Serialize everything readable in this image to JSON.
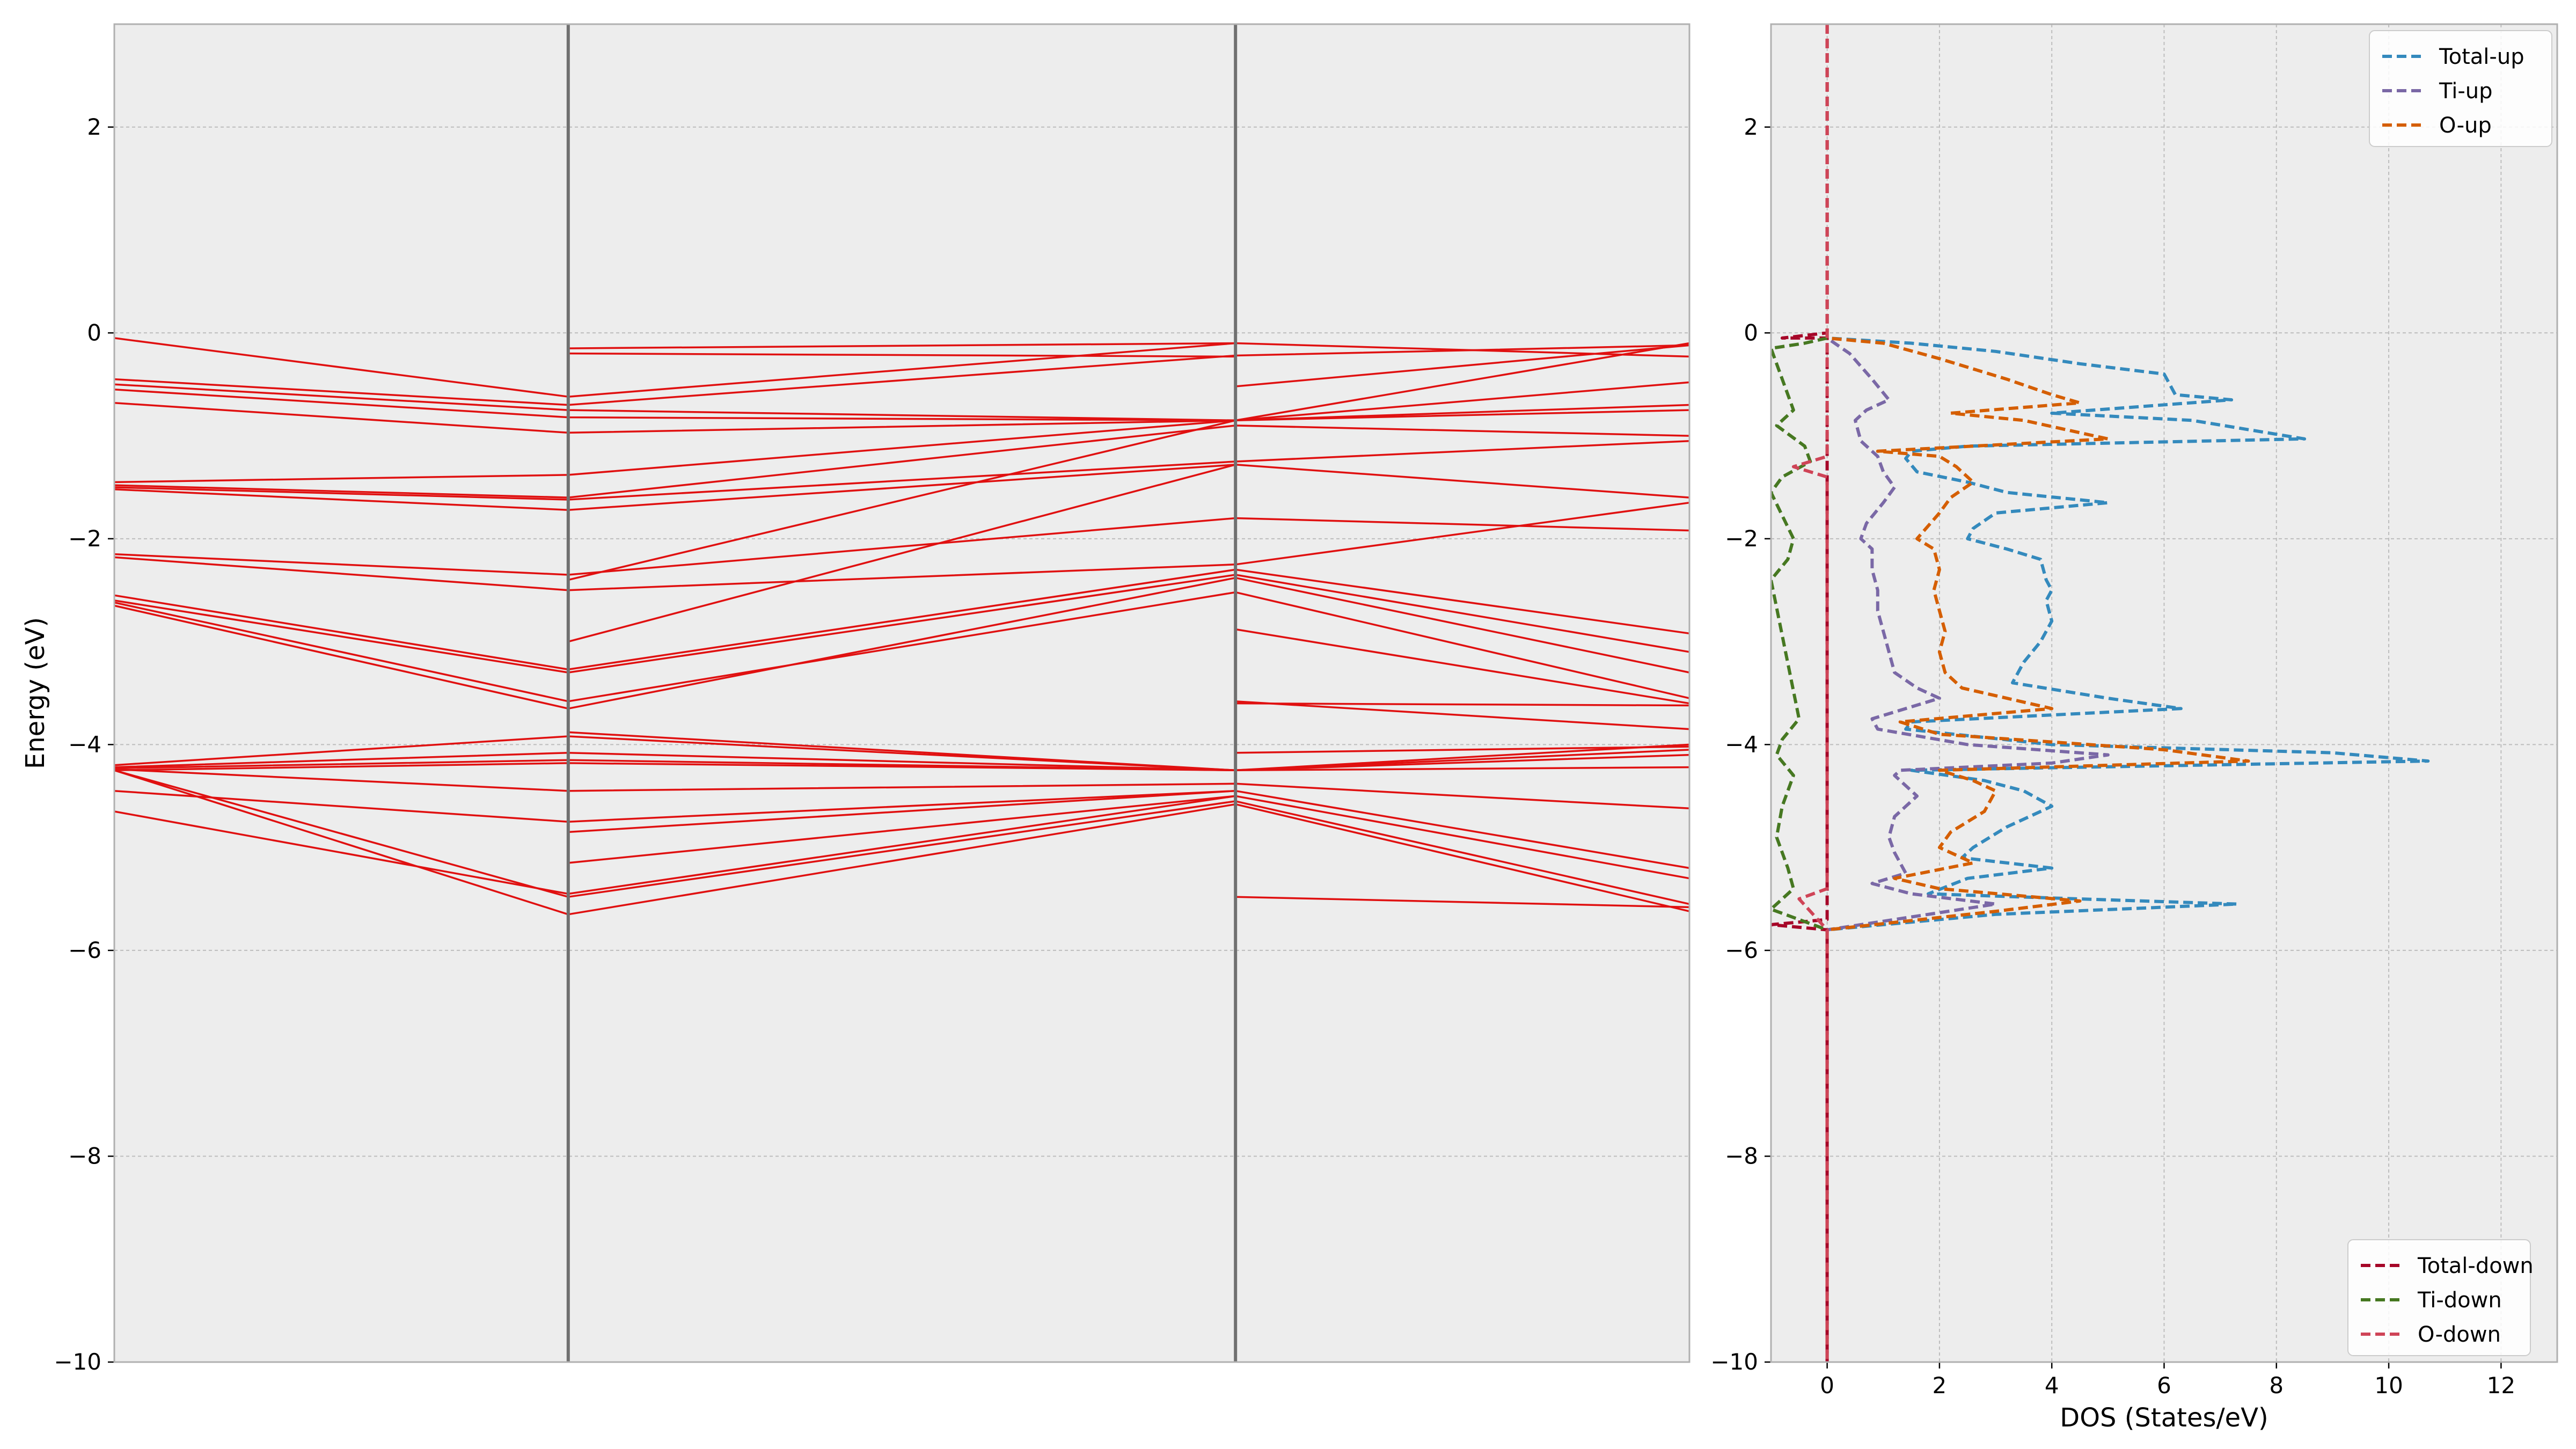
{
  "colors": {
    "axes_bg": "#EDEDED",
    "grid": "#BDBDBD",
    "spine": "#B0B0B0",
    "band": "#E01010",
    "kpath_line": "#707070"
  },
  "chart_data": [
    {
      "type": "line",
      "name": "band-structure",
      "ylabel": "Energy (eV)",
      "ylim": [
        -10,
        3
      ],
      "yticks": [
        -10,
        -8,
        -6,
        -4,
        -2,
        0,
        2
      ],
      "ytick_labels": [
        "−10",
        "−8",
        "−6",
        "−4",
        "−2",
        "0",
        "2"
      ],
      "grid": true,
      "x_segments": 3,
      "kpath_vlines": [
        1,
        2
      ],
      "segment_relative_widths": [
        1,
        1.47,
        1
      ],
      "bands": [
        [
          -0.05,
          -0.62,
          -0.1,
          -0.23
        ],
        [
          -0.45,
          -0.7,
          -0.22,
          -0.12
        ],
        [
          -0.5,
          -0.75,
          -0.85,
          -0.1
        ],
        [
          -0.55,
          -0.82,
          -0.85,
          -0.48
        ],
        [
          -0.68,
          -0.97,
          -0.85,
          -0.7
        ],
        [
          -1.45,
          -1.38,
          -0.85,
          -0.75
        ],
        [
          -1.48,
          -1.6,
          -0.9,
          -1.0
        ],
        [
          -1.5,
          -1.62,
          -1.25,
          -1.05
        ],
        [
          -1.52,
          -1.72,
          -1.28,
          -1.6
        ],
        [
          -2.15,
          -2.35,
          -1.8,
          -1.92
        ],
        [
          -2.18,
          -2.5,
          -2.25,
          -1.65
        ],
        [
          -2.55,
          -3.27,
          -2.3,
          -2.92
        ],
        [
          -2.6,
          -3.3,
          -2.35,
          -3.1
        ],
        [
          -2.62,
          -3.58,
          -2.52,
          -3.55
        ],
        [
          -2.65,
          -3.65,
          -2.38,
          -3.3
        ],
        [
          -4.2,
          -3.92,
          -4.25,
          -4.05
        ],
        [
          -4.22,
          -4.08,
          -4.25,
          -4.1
        ],
        [
          -4.23,
          -4.15,
          -4.25,
          -4.22
        ],
        [
          -4.25,
          -4.18,
          -4.25,
          -4.0
        ],
        [
          -4.24,
          -4.45,
          -4.38,
          -4.62
        ],
        [
          -4.45,
          -4.75,
          -4.45,
          -5.2
        ],
        [
          -4.65,
          -5.45,
          -4.5,
          -5.3
        ],
        [
          -4.25,
          -5.48,
          -4.55,
          -5.55
        ],
        [
          -4.25,
          -5.65,
          -4.58,
          -5.62
        ]
      ],
      "extra_segment_lines": [
        {
          "segment": 1,
          "from": -3.88,
          "to": -4.25
        },
        {
          "segment": 1,
          "from": -4.85,
          "to": -4.45
        },
        {
          "segment": 1,
          "from": -5.15,
          "to": -4.5
        },
        {
          "segment": 1,
          "from": -3.0,
          "to": -1.28
        },
        {
          "segment": 1,
          "from": -2.4,
          "to": -0.85
        },
        {
          "segment": 1,
          "from": -0.15,
          "to": -0.1
        },
        {
          "segment": 1,
          "from": -0.2,
          "to": -0.23
        },
        {
          "segment": 2,
          "from": -0.52,
          "to": -0.12
        },
        {
          "segment": 2,
          "from": -3.6,
          "to": -3.62
        },
        {
          "segment": 2,
          "from": -3.58,
          "to": -3.85
        },
        {
          "segment": 2,
          "from": -4.08,
          "to": -4.02
        },
        {
          "segment": 2,
          "from": -5.48,
          "to": -5.58
        },
        {
          "segment": 2,
          "from": -2.88,
          "to": -3.6
        }
      ]
    },
    {
      "type": "line",
      "name": "dos",
      "xlabel": "DOS (States/eV)",
      "xlim": [
        -1,
        13
      ],
      "ylim": [
        -10,
        3
      ],
      "xticks": [
        0,
        2,
        4,
        6,
        8,
        10,
        12
      ],
      "xtick_labels": [
        "0",
        "2",
        "4",
        "6",
        "8",
        "10",
        "12"
      ],
      "yticks": [
        -10,
        -8,
        -6,
        -4,
        -2,
        0,
        2
      ],
      "ytick_labels": [
        "−10",
        "−8",
        "−6",
        "−4",
        "−2",
        "0",
        "2"
      ],
      "grid": true,
      "legend_upper": {
        "placement": "top-right",
        "entries": [
          "Total-up",
          "Ti-up",
          "O-up"
        ]
      },
      "legend_lower": {
        "placement": "bottom-right",
        "entries": [
          "Total-down",
          "Ti-down",
          "O-down"
        ]
      },
      "series": [
        {
          "name": "Total-up",
          "color": "#348ABD",
          "points": [
            [
              0,
              3
            ],
            [
              0,
              0.0
            ],
            [
              0,
              -0.05
            ],
            [
              1.5,
              -0.1
            ],
            [
              3.0,
              -0.18
            ],
            [
              4.5,
              -0.3
            ],
            [
              6.0,
              -0.4
            ],
            [
              6.2,
              -0.6
            ],
            [
              7.2,
              -0.65
            ],
            [
              4.0,
              -0.78
            ],
            [
              6.5,
              -0.85
            ],
            [
              8.5,
              -1.03
            ],
            [
              2.5,
              -1.1
            ],
            [
              1.5,
              -1.15
            ],
            [
              1.4,
              -1.22
            ],
            [
              1.6,
              -1.35
            ],
            [
              2.5,
              -1.45
            ],
            [
              3.2,
              -1.55
            ],
            [
              5.0,
              -1.65
            ],
            [
              3.0,
              -1.75
            ],
            [
              2.6,
              -1.9
            ],
            [
              2.5,
              -2.0
            ],
            [
              3.2,
              -2.1
            ],
            [
              3.8,
              -2.2
            ],
            [
              3.9,
              -2.4
            ],
            [
              4.0,
              -2.5
            ],
            [
              3.9,
              -2.6
            ],
            [
              4.0,
              -2.8
            ],
            [
              3.8,
              -3.0
            ],
            [
              3.5,
              -3.2
            ],
            [
              3.3,
              -3.4
            ],
            [
              5.0,
              -3.55
            ],
            [
              6.3,
              -3.65
            ],
            [
              1.5,
              -3.78
            ],
            [
              1.4,
              -3.85
            ],
            [
              4.0,
              -4.0
            ],
            [
              9.0,
              -4.08
            ],
            [
              10.7,
              -4.16
            ],
            [
              1.5,
              -4.25
            ],
            [
              2.8,
              -4.35
            ],
            [
              3.5,
              -4.45
            ],
            [
              4.0,
              -4.6
            ],
            [
              3.2,
              -4.8
            ],
            [
              2.6,
              -5.0
            ],
            [
              2.4,
              -5.1
            ],
            [
              4.0,
              -5.2
            ],
            [
              2.5,
              -5.3
            ],
            [
              1.8,
              -5.45
            ],
            [
              4.5,
              -5.5
            ],
            [
              7.3,
              -5.55
            ],
            [
              3.0,
              -5.65
            ],
            [
              0,
              -5.8
            ],
            [
              0,
              -10
            ]
          ]
        },
        {
          "name": "Ti-up",
          "color": "#7A68A6",
          "points": [
            [
              0,
              3
            ],
            [
              0,
              0.0
            ],
            [
              0,
              -0.05
            ],
            [
              0.4,
              -0.2
            ],
            [
              0.8,
              -0.45
            ],
            [
              1.1,
              -0.65
            ],
            [
              0.7,
              -0.75
            ],
            [
              0.5,
              -0.85
            ],
            [
              0.6,
              -1.05
            ],
            [
              0.9,
              -1.2
            ],
            [
              1.0,
              -1.35
            ],
            [
              1.2,
              -1.5
            ],
            [
              1.0,
              -1.65
            ],
            [
              0.7,
              -1.85
            ],
            [
              0.6,
              -2.0
            ],
            [
              0.8,
              -2.1
            ],
            [
              0.8,
              -2.3
            ],
            [
              0.9,
              -2.5
            ],
            [
              0.9,
              -2.7
            ],
            [
              1.0,
              -2.9
            ],
            [
              1.1,
              -3.1
            ],
            [
              1.2,
              -3.3
            ],
            [
              1.6,
              -3.45
            ],
            [
              2.0,
              -3.55
            ],
            [
              0.8,
              -3.75
            ],
            [
              0.9,
              -3.85
            ],
            [
              2.5,
              -4.0
            ],
            [
              5.0,
              -4.1
            ],
            [
              4.0,
              -4.18
            ],
            [
              1.3,
              -4.25
            ],
            [
              1.2,
              -4.3
            ],
            [
              1.6,
              -4.5
            ],
            [
              1.2,
              -4.7
            ],
            [
              1.1,
              -4.9
            ],
            [
              1.2,
              -5.05
            ],
            [
              1.4,
              -5.25
            ],
            [
              0.8,
              -5.35
            ],
            [
              1.5,
              -5.45
            ],
            [
              3.0,
              -5.55
            ],
            [
              0,
              -5.8
            ]
          ]
        },
        {
          "name": "O-up",
          "color": "#D55E00",
          "points": [
            [
              0,
              3
            ],
            [
              0,
              0.0
            ],
            [
              0,
              -0.05
            ],
            [
              1.0,
              -0.1
            ],
            [
              2.0,
              -0.25
            ],
            [
              3.2,
              -0.45
            ],
            [
              4.0,
              -0.6
            ],
            [
              4.5,
              -0.68
            ],
            [
              2.2,
              -0.78
            ],
            [
              3.5,
              -0.85
            ],
            [
              5.0,
              -1.03
            ],
            [
              0.9,
              -1.15
            ],
            [
              2.0,
              -1.2
            ],
            [
              2.3,
              -1.3
            ],
            [
              2.6,
              -1.45
            ],
            [
              2.2,
              -1.6
            ],
            [
              2.0,
              -1.75
            ],
            [
              1.6,
              -2.0
            ],
            [
              1.9,
              -2.1
            ],
            [
              2.0,
              -2.3
            ],
            [
              1.9,
              -2.5
            ],
            [
              2.0,
              -2.7
            ],
            [
              2.1,
              -2.9
            ],
            [
              2.0,
              -3.1
            ],
            [
              2.1,
              -3.3
            ],
            [
              2.4,
              -3.45
            ],
            [
              3.2,
              -3.55
            ],
            [
              4.0,
              -3.65
            ],
            [
              1.3,
              -3.78
            ],
            [
              2.0,
              -3.9
            ],
            [
              6.0,
              -4.05
            ],
            [
              7.5,
              -4.16
            ],
            [
              2.0,
              -4.25
            ],
            [
              2.6,
              -4.35
            ],
            [
              3.0,
              -4.45
            ],
            [
              2.8,
              -4.65
            ],
            [
              2.2,
              -4.85
            ],
            [
              2.0,
              -5.0
            ],
            [
              2.6,
              -5.15
            ],
            [
              1.2,
              -5.3
            ],
            [
              2.0,
              -5.4
            ],
            [
              4.5,
              -5.52
            ],
            [
              3.0,
              -5.62
            ],
            [
              0,
              -5.8
            ],
            [
              0,
              -10
            ]
          ]
        },
        {
          "name": "Total-down",
          "color": "#A60628",
          "points": [
            [
              0,
              3
            ],
            [
              0,
              0.0
            ],
            [
              -0.8,
              -0.05
            ],
            [
              0,
              -0.05
            ],
            [
              0,
              -5.7
            ],
            [
              -1,
              -5.75
            ],
            [
              0,
              -5.8
            ],
            [
              0,
              -10
            ]
          ]
        },
        {
          "name": "Ti-down",
          "color": "#467821",
          "points": [
            [
              0,
              -0.05
            ],
            [
              -0.4,
              -0.1
            ],
            [
              -1,
              -0.15
            ],
            [
              -0.6,
              -0.75
            ],
            [
              -0.9,
              -0.9
            ],
            [
              -0.4,
              -1.1
            ],
            [
              -0.3,
              -1.25
            ],
            [
              -0.8,
              -1.4
            ],
            [
              -1,
              -1.55
            ],
            [
              -0.6,
              -2.0
            ],
            [
              -0.7,
              -2.2
            ],
            [
              -1,
              -2.4
            ],
            [
              -0.5,
              -3.75
            ],
            [
              -0.8,
              -3.95
            ],
            [
              -0.9,
              -4.1
            ],
            [
              -0.6,
              -4.3
            ],
            [
              -0.8,
              -4.6
            ],
            [
              -0.9,
              -4.9
            ],
            [
              -0.7,
              -5.2
            ],
            [
              -0.6,
              -5.4
            ],
            [
              -1,
              -5.6
            ],
            [
              -0.5,
              -5.7
            ],
            [
              0,
              -5.8
            ]
          ]
        },
        {
          "name": "O-down",
          "color": "#CF4457",
          "points": [
            [
              0,
              3
            ],
            [
              0,
              -1.2
            ],
            [
              -0.6,
              -1.3
            ],
            [
              0,
              -1.4
            ],
            [
              0,
              -5.4
            ],
            [
              -0.5,
              -5.5
            ],
            [
              0,
              -5.8
            ],
            [
              0,
              -10
            ]
          ]
        }
      ]
    }
  ]
}
